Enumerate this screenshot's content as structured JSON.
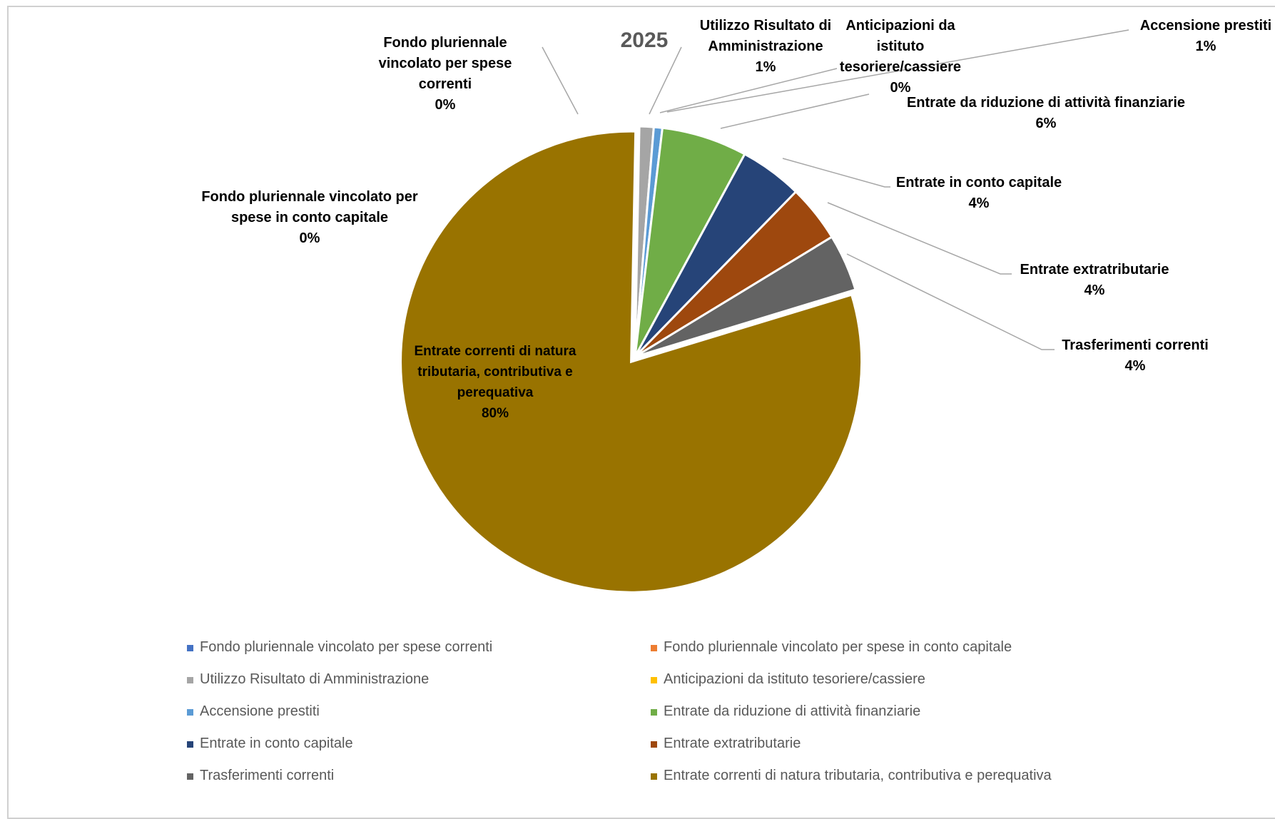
{
  "chart_data": {
    "type": "pie",
    "title": "2025",
    "slices": [
      {
        "label": "Fondo pluriennale vincolato per spese correnti",
        "display_label": [
          "Fondo pluriennale",
          "vincolato per spese",
          "correnti"
        ],
        "percent_label": "0%",
        "value": 0.0,
        "color": "#4472c4"
      },
      {
        "label": "Fondo pluriennale vincolato per spese in conto capitale",
        "display_label": [
          "Fondo pluriennale vincolato per",
          "spese in conto capitale"
        ],
        "percent_label": "0%",
        "value": 0.0,
        "color": "#ed7d31"
      },
      {
        "label": "Utilizzo Risultato di Amministrazione",
        "display_label": [
          "Utilizzo Risultato di",
          "Amministrazione"
        ],
        "percent_label": "1%",
        "value": 1.0,
        "color": "#a5a5a5"
      },
      {
        "label": "Anticipazioni da istituto tesoriere/cassiere",
        "display_label": [
          "Anticipazioni da",
          "istituto",
          "tesoriere/cassiere"
        ],
        "percent_label": "0%",
        "value": 0.0,
        "color": "#ffc000"
      },
      {
        "label": "Accensione prestiti",
        "display_label": [
          "Accensione prestiti"
        ],
        "percent_label": "1%",
        "value": 0.6,
        "color": "#5b9bd5"
      },
      {
        "label": "Entrate da riduzione di attività finanziarie",
        "display_label": [
          "Entrate da riduzione di attività finanziarie"
        ],
        "percent_label": "6%",
        "value": 6.0,
        "color": "#70ad47"
      },
      {
        "label": "Entrate in conto capitale",
        "display_label": [
          "Entrate in conto capitale"
        ],
        "percent_label": "4%",
        "value": 4.4,
        "color": "#264478"
      },
      {
        "label": "Entrate extratributarie",
        "display_label": [
          "Entrate extratributarie"
        ],
        "percent_label": "4%",
        "value": 4.0,
        "color": "#9e480e"
      },
      {
        "label": "Trasferimenti correnti",
        "display_label": [
          "Trasferimenti correnti"
        ],
        "percent_label": "4%",
        "value": 4.0,
        "color": "#636363"
      },
      {
        "label": "Entrate correnti di natura tributaria, contributiva e perequativa",
        "display_label": [
          "Entrate correnti di natura",
          "tributaria, contributiva e",
          "perequativa"
        ],
        "percent_label": "80%",
        "value": 80.0,
        "color": "#997300"
      }
    ],
    "legend": {
      "placement": "bottom",
      "items": [
        " Fondo pluriennale vincolato per spese correnti",
        "Fondo pluriennale vincolato per spese in conto capitale",
        "Utilizzo Risultato di Amministrazione",
        " Anticipazioni da istituto tesoriere/cassiere",
        " Accensione prestiti",
        " Entrate da riduzione di attività finanziarie",
        " Entrate in conto capitale",
        "Entrate extratributarie",
        "Trasferimenti correnti",
        " Entrate correnti di natura tributaria, contributiva e perequativa"
      ]
    }
  }
}
